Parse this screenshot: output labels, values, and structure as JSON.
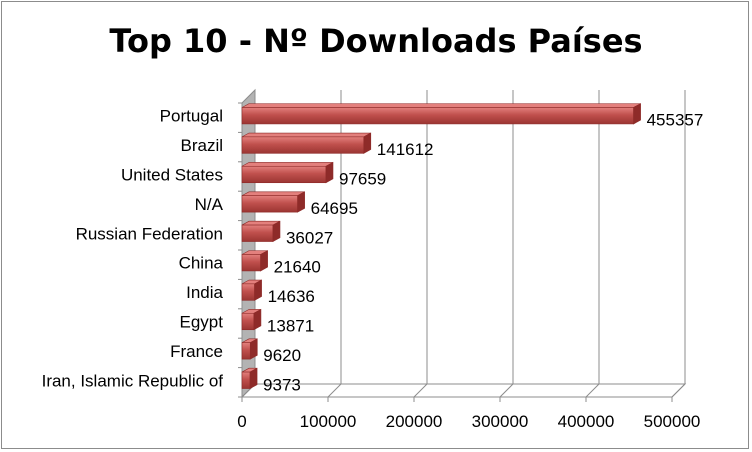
{
  "chart_data": {
    "type": "bar",
    "orientation": "horizontal",
    "title": "Top 10 - Nº Downloads Países",
    "categories": [
      "Portugal",
      "Brazil",
      "United States",
      "N/A",
      "Russian Federation",
      "China",
      "India",
      "Egypt",
      "France",
      "Iran, Islamic Republic of"
    ],
    "values": [
      455357,
      141612,
      97659,
      64695,
      36027,
      21640,
      14636,
      13871,
      9620,
      9373
    ],
    "xlim": [
      0,
      500000
    ],
    "xticks": [
      "0",
      "100000",
      "200000",
      "300000",
      "400000",
      "500000"
    ],
    "grid": true,
    "legend": "none",
    "colors": {
      "bar": "#c0504d",
      "bar_dark": "#8e2b29",
      "bar_light": "#e3807d",
      "grid": "#8c8c8c"
    }
  }
}
